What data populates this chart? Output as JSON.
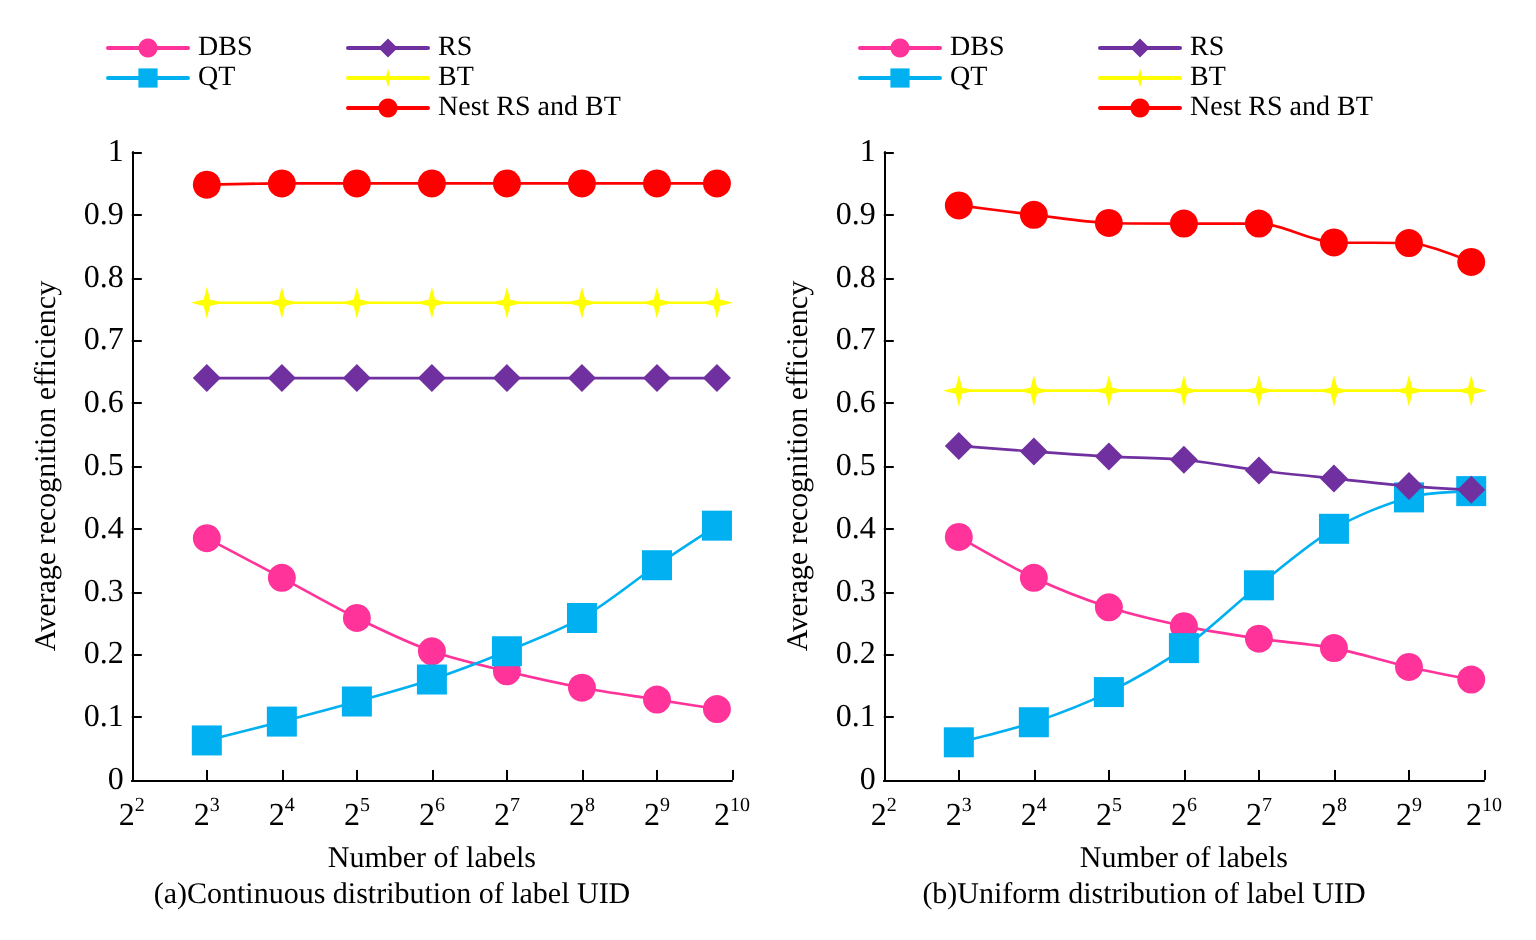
{
  "chart_data": [
    {
      "type": "line",
      "title": "(a)Continuous distribution of label UID",
      "xlabel": "Number of labels",
      "ylabel": "Average recognition efficiency",
      "x": [
        8,
        16,
        32,
        64,
        128,
        256,
        512,
        891
      ],
      "log": "x",
      "xlim": [
        4,
        1024
      ],
      "xticks": [
        {
          "value": 4,
          "label": "2$^{2}$"
        },
        {
          "value": 8,
          "label": "2$^{3}$"
        },
        {
          "value": 16,
          "label": "2$^{4}$"
        },
        {
          "value": 32,
          "label": "2$^{5}$"
        },
        {
          "value": 64,
          "label": "2$^{6}$"
        },
        {
          "value": 128,
          "label": "2$^{7}$"
        },
        {
          "value": 256,
          "label": "2$^{8}$"
        },
        {
          "value": 512,
          "label": "2$^{9}$"
        },
        {
          "value": 1024,
          "label": "2$^{10}$"
        }
      ],
      "ylim": [
        0,
        1
      ],
      "yticks": [
        0,
        0.1,
        0.2,
        0.3,
        0.4,
        0.5,
        0.6,
        0.7,
        0.8,
        0.9,
        1
      ],
      "grid": false,
      "legend": "top",
      "line_style": "solid",
      "series": [
        {
          "name": "DBS",
          "color": "#ff3399",
          "marker": "circle",
          "values": [
            0.385,
            0.322,
            0.258,
            0.205,
            0.173,
            0.147,
            0.128,
            0.113
          ]
        },
        {
          "name": "QT",
          "color": "#00b0f0",
          "marker": "square",
          "values": [
            0.063,
            0.093,
            0.125,
            0.16,
            0.205,
            0.258,
            0.342,
            0.405
          ]
        },
        {
          "name": "RS",
          "color": "#7030a0",
          "marker": "diamond",
          "values": [
            0.64,
            0.64,
            0.64,
            0.64,
            0.64,
            0.64,
            0.64,
            0.64
          ]
        },
        {
          "name": "BT",
          "color": "#ffff00",
          "marker": "star",
          "values": [
            0.76,
            0.76,
            0.76,
            0.76,
            0.76,
            0.76,
            0.76,
            0.76
          ]
        },
        {
          "name": "Nest RS and BT",
          "color": "#ff0000",
          "marker": "circle",
          "values": [
            0.948,
            0.95,
            0.95,
            0.95,
            0.95,
            0.95,
            0.95,
            0.95
          ]
        }
      ]
    },
    {
      "type": "line",
      "title": "(b)Uniform distribution of label UID",
      "xlabel": "Number of labels",
      "ylabel": "Average recognition efficiency",
      "x": [
        8,
        16,
        32,
        64,
        128,
        256,
        512,
        910
      ],
      "log": "x",
      "xlim": [
        4,
        1024
      ],
      "xticks": [
        {
          "value": 4,
          "label": "2$^{2}$"
        },
        {
          "value": 8,
          "label": "2$^{3}$"
        },
        {
          "value": 16,
          "label": "2$^{4}$"
        },
        {
          "value": 32,
          "label": "2$^{5}$"
        },
        {
          "value": 64,
          "label": "2$^{6}$"
        },
        {
          "value": 128,
          "label": "2$^{7}$"
        },
        {
          "value": 256,
          "label": "2$^{8}$"
        },
        {
          "value": 512,
          "label": "2$^{9}$"
        },
        {
          "value": 1024,
          "label": "2$^{10}$"
        }
      ],
      "ylim": [
        0,
        1
      ],
      "yticks": [
        0,
        0.1,
        0.2,
        0.3,
        0.4,
        0.5,
        0.6,
        0.7,
        0.8,
        0.9,
        1
      ],
      "grid": false,
      "legend": "top",
      "line_style": "solid",
      "series": [
        {
          "name": "DBS",
          "color": "#ff3399",
          "marker": "circle",
          "values": [
            0.387,
            0.322,
            0.275,
            0.245,
            0.225,
            0.21,
            0.18,
            0.16
          ]
        },
        {
          "name": "QT",
          "color": "#00b0f0",
          "marker": "square",
          "values": [
            0.06,
            0.092,
            0.14,
            0.21,
            0.31,
            0.4,
            0.45,
            0.46
          ]
        },
        {
          "name": "RS",
          "color": "#7030a0",
          "marker": "diamond",
          "values": [
            0.532,
            0.523,
            0.515,
            0.51,
            0.493,
            0.48,
            0.468,
            0.462
          ]
        },
        {
          "name": "BT",
          "color": "#ffff00",
          "marker": "star",
          "values": [
            0.62,
            0.62,
            0.62,
            0.62,
            0.62,
            0.62,
            0.62,
            0.62
          ]
        },
        {
          "name": "Nest RS and BT",
          "color": "#ff0000",
          "marker": "circle",
          "values": [
            0.915,
            0.9,
            0.887,
            0.886,
            0.886,
            0.856,
            0.855,
            0.825
          ]
        }
      ]
    }
  ]
}
